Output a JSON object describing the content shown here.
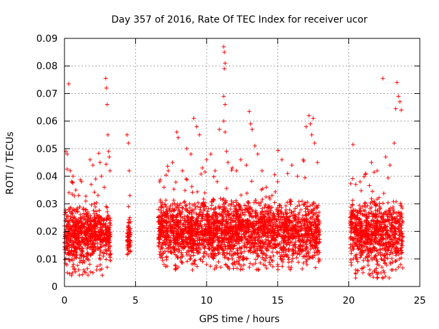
{
  "chart_data": {
    "type": "scatter",
    "title": "Day 357 of 2016, Rate Of TEC Index for receiver ucor",
    "xlabel": "GPS time / hours",
    "ylabel": "ROTI / TECUs",
    "xlim": [
      0,
      25
    ],
    "ylim": [
      0,
      0.09
    ],
    "xticks": [
      0,
      5,
      10,
      15,
      20,
      25
    ],
    "xtick_labels": [
      "0",
      "5",
      "10",
      "15",
      "20",
      "25"
    ],
    "yticks": [
      0,
      0.01,
      0.02,
      0.03,
      0.04,
      0.05,
      0.06,
      0.07,
      0.08,
      0.09
    ],
    "ytick_labels": [
      "0",
      "0.01",
      "0.02",
      "0.03",
      "0.04",
      "0.05",
      "0.06",
      "0.07",
      "0.08",
      "0.09"
    ],
    "grid": true,
    "legend": "none",
    "marker": "+",
    "color": "#ff0000",
    "series": [
      {
        "points": [
          [
            0.1,
            0.049
          ],
          [
            0.2,
            0.048
          ],
          [
            0.3,
            0.0735
          ],
          [
            0.4,
            0.042
          ],
          [
            0.5,
            0.038
          ],
          [
            0.6,
            0.04
          ],
          [
            0.8,
            0.035
          ],
          [
            1.0,
            0.033
          ],
          [
            1.2,
            0.038
          ],
          [
            1.5,
            0.031
          ],
          [
            1.8,
            0.046
          ],
          [
            2.0,
            0.044
          ],
          [
            2.2,
            0.039
          ],
          [
            2.5,
            0.045
          ],
          [
            2.6,
            0.04
          ],
          [
            2.8,
            0.036
          ],
          [
            2.9,
            0.0755
          ],
          [
            2.95,
            0.072
          ],
          [
            3.0,
            0.066
          ],
          [
            3.05,
            0.055
          ],
          [
            3.1,
            0.049
          ],
          [
            3.15,
            0.047
          ],
          [
            3.2,
            0.042
          ],
          [
            0.2,
            0.005
          ],
          [
            0.5,
            0.004
          ],
          [
            1.0,
            0.006
          ],
          [
            1.5,
            0.005
          ],
          [
            2.0,
            0.005
          ],
          [
            2.5,
            0.006
          ],
          [
            3.0,
            0.007
          ],
          [
            4.4,
            0.055
          ],
          [
            4.5,
            0.052
          ],
          [
            4.55,
            0.042
          ],
          [
            4.6,
            0.033
          ],
          [
            4.5,
            0.029
          ],
          [
            4.6,
            0.025
          ],
          [
            4.5,
            0.022
          ],
          [
            4.55,
            0.018
          ],
          [
            4.6,
            0.015
          ],
          [
            4.5,
            0.012
          ],
          [
            6.7,
            0.038
          ],
          [
            7.0,
            0.036
          ],
          [
            7.3,
            0.042
          ],
          [
            7.6,
            0.045
          ],
          [
            7.9,
            0.056
          ],
          [
            8.0,
            0.054
          ],
          [
            8.3,
            0.042
          ],
          [
            8.6,
            0.05
          ],
          [
            8.9,
            0.048
          ],
          [
            9.1,
            0.061
          ],
          [
            9.3,
            0.058
          ],
          [
            9.5,
            0.055
          ],
          [
            9.7,
            0.043
          ],
          [
            10.0,
            0.046
          ],
          [
            10.3,
            0.048
          ],
          [
            10.6,
            0.042
          ],
          [
            10.9,
            0.057
          ],
          [
            11.2,
            0.087
          ],
          [
            11.25,
            0.085
          ],
          [
            11.3,
            0.081
          ],
          [
            11.25,
            0.079
          ],
          [
            11.2,
            0.069
          ],
          [
            11.3,
            0.066
          ],
          [
            11.2,
            0.06
          ],
          [
            11.3,
            0.056
          ],
          [
            11.4,
            0.049
          ],
          [
            11.5,
            0.045
          ],
          [
            11.8,
            0.043
          ],
          [
            12.1,
            0.042
          ],
          [
            12.4,
            0.046
          ],
          [
            12.8,
            0.044
          ],
          [
            13.0,
            0.0635
          ],
          [
            13.1,
            0.059
          ],
          [
            13.2,
            0.057
          ],
          [
            13.4,
            0.051
          ],
          [
            13.6,
            0.048
          ],
          [
            13.9,
            0.042
          ],
          [
            14.2,
            0.036
          ],
          [
            14.6,
            0.033
          ],
          [
            15.0,
            0.038
          ],
          [
            15.3,
            0.046
          ],
          [
            15.7,
            0.041
          ],
          [
            16.0,
            0.044
          ],
          [
            16.4,
            0.04
          ],
          [
            16.8,
            0.046
          ],
          [
            17.0,
            0.058
          ],
          [
            17.2,
            0.062
          ],
          [
            17.3,
            0.059
          ],
          [
            17.4,
            0.055
          ],
          [
            17.5,
            0.061
          ],
          [
            17.6,
            0.052
          ],
          [
            17.8,
            0.045
          ],
          [
            7.0,
            0.008
          ],
          [
            8.0,
            0.007
          ],
          [
            9.0,
            0.006
          ],
          [
            10.0,
            0.008
          ],
          [
            11.0,
            0.007
          ],
          [
            12.0,
            0.008
          ],
          [
            13.0,
            0.007
          ],
          [
            14.0,
            0.008
          ],
          [
            15.0,
            0.008
          ],
          [
            16.0,
            0.009
          ],
          [
            17.0,
            0.009
          ],
          [
            17.9,
            0.01
          ],
          [
            20.3,
            0.0515
          ],
          [
            20.5,
            0.037
          ],
          [
            20.8,
            0.038
          ],
          [
            21.2,
            0.041
          ],
          [
            21.6,
            0.045
          ],
          [
            22.0,
            0.042
          ],
          [
            22.4,
            0.0755
          ],
          [
            22.6,
            0.047
          ],
          [
            22.9,
            0.044
          ],
          [
            23.2,
            0.052
          ],
          [
            23.3,
            0.0645
          ],
          [
            23.4,
            0.074
          ],
          [
            23.5,
            0.069
          ],
          [
            23.6,
            0.067
          ],
          [
            23.7,
            0.064
          ],
          [
            20.5,
            0.006
          ],
          [
            21.0,
            0.005
          ],
          [
            21.5,
            0.004
          ],
          [
            22.0,
            0.003
          ],
          [
            22.5,
            0.005
          ],
          [
            23.0,
            0.006
          ],
          [
            23.5,
            0.007
          ]
        ],
        "dense_bands": [
          {
            "x": [
              0.0,
              3.25
            ],
            "y_core": [
              0.008,
              0.03
            ],
            "y_spread": [
              0.004,
              0.045
            ]
          },
          {
            "x": [
              4.4,
              4.65
            ],
            "y_core": [
              0.012,
              0.025
            ],
            "y_spread": [
              0.011,
              0.03
            ]
          },
          {
            "x": [
              6.6,
              17.95
            ],
            "y_core": [
              0.009,
              0.032
            ],
            "y_spread": [
              0.006,
              0.046
            ]
          },
          {
            "x": [
              20.1,
              23.8
            ],
            "y_core": [
              0.008,
              0.032
            ],
            "y_spread": [
              0.003,
              0.045
            ]
          }
        ]
      }
    ]
  }
}
